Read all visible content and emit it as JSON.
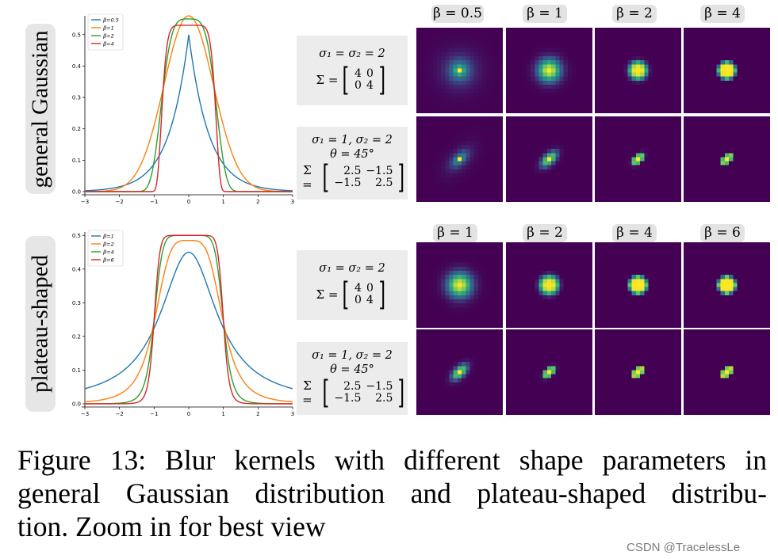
{
  "rows": [
    {
      "label": "general Gaussian",
      "betas": [
        "β = 0.5",
        "β = 1",
        "β = 2",
        "β = 4"
      ],
      "iso_params": {
        "sigma": "σ₁ = σ₂ = 2",
        "sigma_label": "Σ =",
        "matrix": [
          [
            "4",
            "0"
          ],
          [
            "0",
            "4"
          ]
        ]
      },
      "aniso_params": {
        "sigma": "σ₁ = 1, σ₂ = 2",
        "theta": "θ = 45°",
        "sigma_label": "Σ =",
        "matrix": [
          [
            "2.5",
            "−1.5"
          ],
          [
            "−1.5",
            "2.5"
          ]
        ]
      }
    },
    {
      "label": "plateau-shaped",
      "betas": [
        "β = 1",
        "β = 2",
        "β = 4",
        "β = 6"
      ],
      "iso_params": {
        "sigma": "σ₁ = σ₂ = 2",
        "sigma_label": "Σ =",
        "matrix": [
          [
            "4",
            "0"
          ],
          [
            "0",
            "4"
          ]
        ]
      },
      "aniso_params": {
        "sigma": "σ₁ = 1, σ₂ = 2",
        "theta": "θ = 45°",
        "sigma_label": "Σ =",
        "matrix": [
          [
            "2.5",
            "−1.5"
          ],
          [
            "−1.5",
            "2.5"
          ]
        ]
      }
    }
  ],
  "chart_data": [
    {
      "type": "line",
      "title": "",
      "xlabel": "",
      "ylabel": "",
      "xlim": [
        -3,
        3
      ],
      "ylim": [
        0,
        0.56
      ],
      "xticks": [
        "−3",
        "−2",
        "−1",
        "0",
        "1",
        "2",
        "3"
      ],
      "yticks": [
        "0.0",
        "0.1",
        "0.2",
        "0.3",
        "0.4",
        "0.5"
      ],
      "legend": "top-left",
      "series": [
        {
          "name": "β=0.5",
          "color": "#1f77b4",
          "shape": "generalized_gaussian",
          "beta": 0.5,
          "peak": 0.5,
          "x": [
            -3,
            -2,
            -1,
            0,
            1,
            2,
            3
          ],
          "values": [
            0.025,
            0.06,
            0.19,
            0.5,
            0.19,
            0.06,
            0.025
          ]
        },
        {
          "name": "β=1",
          "color": "#ff7f0e",
          "shape": "generalized_gaussian",
          "beta": 1,
          "peak": 0.56,
          "x": [
            -3,
            -2,
            -1,
            0,
            1,
            2,
            3
          ],
          "values": [
            0.0,
            0.01,
            0.21,
            0.56,
            0.21,
            0.01,
            0.0
          ]
        },
        {
          "name": "β=2",
          "color": "#2ca02c",
          "shape": "generalized_gaussian",
          "beta": 2,
          "peak": 0.55,
          "x": [
            -3,
            -2,
            -1,
            0,
            1,
            2,
            3
          ],
          "values": [
            0.0,
            0.0,
            0.2,
            0.55,
            0.2,
            0.0,
            0.0
          ]
        },
        {
          "name": "β=4",
          "color": "#d62728",
          "shape": "generalized_gaussian",
          "beta": 4,
          "peak": 0.53,
          "x": [
            -3,
            -2,
            -1,
            0,
            1,
            2,
            3
          ],
          "values": [
            0.0,
            0.0,
            0.19,
            0.53,
            0.19,
            0.0,
            0.0
          ]
        }
      ]
    },
    {
      "type": "line",
      "title": "",
      "xlabel": "",
      "ylabel": "",
      "xlim": [
        -3,
        3
      ],
      "ylim": [
        0,
        0.51
      ],
      "xticks": [
        "−3",
        "−2",
        "−1",
        "0",
        "1",
        "2",
        "3"
      ],
      "yticks": [
        "0.0",
        "0.1",
        "0.2",
        "0.3",
        "0.4",
        "0.5"
      ],
      "legend": "top-left",
      "series": [
        {
          "name": "β=1",
          "color": "#1f77b4",
          "shape": "plateau",
          "beta": 1,
          "peak": 0.45,
          "x": [
            -3,
            -2,
            -1,
            0,
            1,
            2,
            3
          ],
          "values": [
            0.045,
            0.1,
            0.225,
            0.45,
            0.225,
            0.1,
            0.045
          ]
        },
        {
          "name": "β=2",
          "color": "#ff7f0e",
          "shape": "plateau",
          "beta": 2,
          "peak": 0.485,
          "x": [
            -3,
            -2,
            -1,
            0,
            1,
            2,
            3
          ],
          "values": [
            0.0,
            0.02,
            0.24,
            0.485,
            0.24,
            0.02,
            0.0
          ]
        },
        {
          "name": "β=4",
          "color": "#2ca02c",
          "shape": "plateau",
          "beta": 4,
          "peak": 0.5,
          "x": [
            -3,
            -2,
            -1,
            0,
            1,
            2,
            3
          ],
          "values": [
            0.0,
            0.0,
            0.25,
            0.5,
            0.25,
            0.0,
            0.0
          ]
        },
        {
          "name": "β=6",
          "color": "#d62728",
          "shape": "plateau",
          "beta": 6,
          "peak": 0.5,
          "x": [
            -3,
            -2,
            -1,
            0,
            1,
            2,
            3
          ],
          "values": [
            0.0,
            0.0,
            0.25,
            0.5,
            0.25,
            0.0,
            0.0
          ]
        }
      ]
    }
  ],
  "kernels": {
    "background": "#440154",
    "rows": [
      [
        {
          "spread": 1.6,
          "aniso": false,
          "hard": 0.5
        },
        {
          "spread": 1.15,
          "aniso": false,
          "hard": 1
        },
        {
          "spread": 1.0,
          "aniso": false,
          "hard": 2
        },
        {
          "spread": 0.95,
          "aniso": false,
          "hard": 4
        }
      ],
      [
        {
          "spread": 1.6,
          "aniso": true,
          "hard": 0.5
        },
        {
          "spread": 1.1,
          "aniso": true,
          "hard": 1
        },
        {
          "spread": 0.95,
          "aniso": true,
          "hard": 2
        },
        {
          "spread": 0.85,
          "aniso": true,
          "hard": 4
        }
      ],
      [
        {
          "spread": 1.25,
          "aniso": false,
          "hard": 1
        },
        {
          "spread": 1.05,
          "aniso": false,
          "hard": 2
        },
        {
          "spread": 0.98,
          "aniso": false,
          "hard": 4
        },
        {
          "spread": 0.95,
          "aniso": false,
          "hard": 6
        }
      ],
      [
        {
          "spread": 1.1,
          "aniso": true,
          "hard": 1
        },
        {
          "spread": 0.95,
          "aniso": true,
          "hard": 2
        },
        {
          "spread": 0.9,
          "aniso": true,
          "hard": 4
        },
        {
          "spread": 0.85,
          "aniso": true,
          "hard": 6
        }
      ]
    ]
  },
  "caption": {
    "line1": "Figure 13: Blur kernels with different shape parameters in",
    "line2": "general Gaussian distribution and plateau-shaped distribu-",
    "line3": "tion. Zoom in for best view"
  },
  "watermark": "CSDN @TracelessLe"
}
